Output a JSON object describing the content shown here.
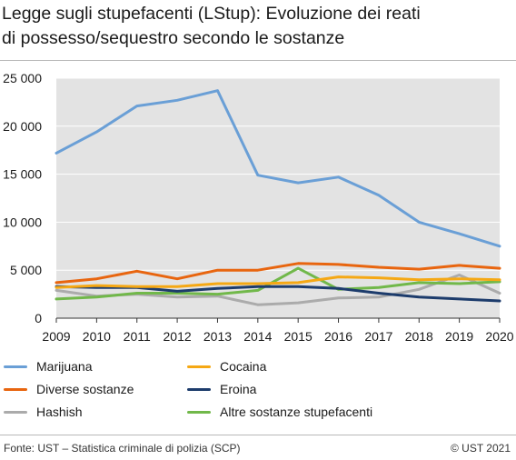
{
  "title_line1": "Legge sugli stupefacenti (LStup): Evoluzione dei reati",
  "title_line2": "di possesso/sequestro secondo le sostanze",
  "footer": {
    "source": "Fonte: UST – Statistica criminale di polizia (SCP)",
    "copyright": "© UST 2021"
  },
  "colors": {
    "plot_background": "#e3e3e3",
    "grid": "#ffffff"
  },
  "chart_data": {
    "type": "line",
    "x": [
      2009,
      2010,
      2011,
      2012,
      2013,
      2014,
      2015,
      2016,
      2017,
      2018,
      2019,
      2020
    ],
    "xticks": [
      "2009",
      "2010",
      "2011",
      "2012",
      "2013",
      "2014",
      "2015",
      "2016",
      "2017",
      "2018",
      "2019",
      "2020"
    ],
    "ylim": [
      0,
      25000
    ],
    "yticks": [
      0,
      5000,
      10000,
      15000,
      20000,
      25000
    ],
    "ytick_labels": [
      "0",
      "5 000",
      "10 000",
      "15 000",
      "20 000",
      "25 000"
    ],
    "grid": true,
    "legend_position": "bottom",
    "series": [
      {
        "name": "Marijuana",
        "color": "#6a9fd6",
        "values": [
          17200,
          19400,
          22100,
          22700,
          23700,
          14900,
          14100,
          14700,
          12800,
          10000,
          8800,
          7500
        ]
      },
      {
        "name": "Cocaina",
        "color": "#f5a814",
        "values": [
          3200,
          3400,
          3300,
          3300,
          3600,
          3600,
          3700,
          4300,
          4200,
          4000,
          4100,
          4000
        ]
      },
      {
        "name": "Diverse sostanze",
        "color": "#e8650f",
        "values": [
          3700,
          4100,
          4900,
          4100,
          5000,
          5000,
          5700,
          5600,
          5300,
          5100,
          5500,
          5200
        ]
      },
      {
        "name": "Eroina",
        "color": "#1d3c6c",
        "values": [
          3300,
          3200,
          3200,
          2800,
          3100,
          3300,
          3300,
          3100,
          2600,
          2200,
          2000,
          1800
        ]
      },
      {
        "name": "Hashish",
        "color": "#ababab",
        "values": [
          2900,
          2300,
          2500,
          2200,
          2300,
          1400,
          1600,
          2100,
          2200,
          3000,
          4500,
          2600
        ]
      },
      {
        "name": "Altre sostanze stupefacenti",
        "color": "#71b84a",
        "values": [
          2000,
          2200,
          2600,
          2600,
          2500,
          2900,
          5200,
          3000,
          3200,
          3700,
          3600,
          3800
        ]
      }
    ]
  }
}
